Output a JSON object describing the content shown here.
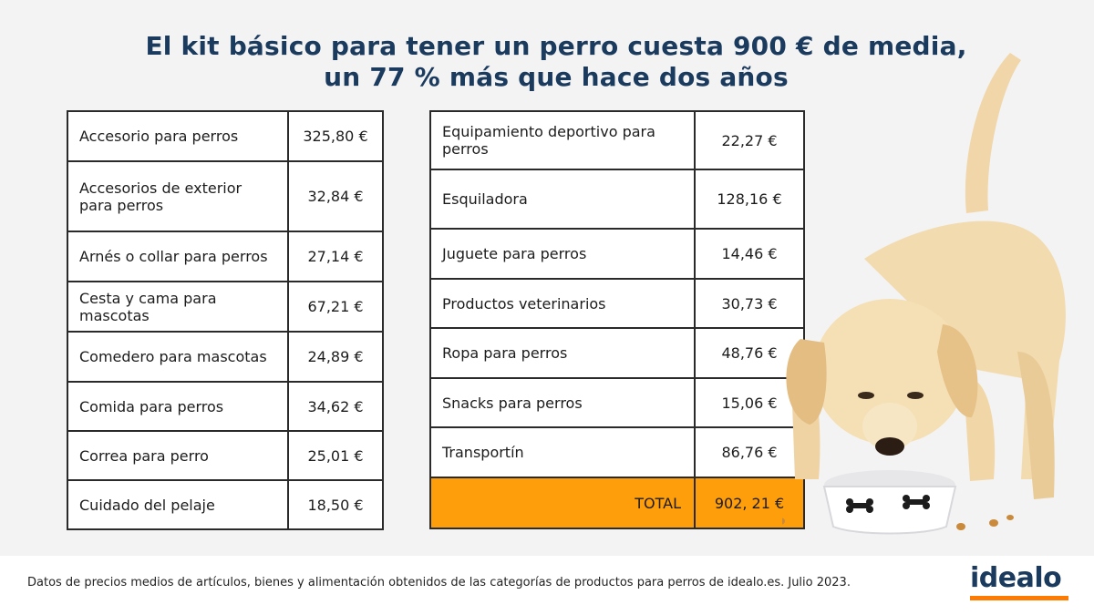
{
  "title": {
    "line1": "El kit básico para tener un perro cuesta 900 € de media,",
    "line2": "un 77 % más que hace dos años"
  },
  "table_left": [
    {
      "item": "Accesorio para perros",
      "price": "325,80 €"
    },
    {
      "item": "Accesorios de exterior para perros",
      "price": "32,84 €"
    },
    {
      "item": "Arnés o collar para perros",
      "price": "27,14 €"
    },
    {
      "item": "Cesta y cama para mascotas",
      "price": "67,21 €"
    },
    {
      "item": "Comedero para mascotas",
      "price": "24,89 €"
    },
    {
      "item": "Comida para perros",
      "price": "34,62 €"
    },
    {
      "item": "Correa para perro",
      "price": "25,01 €"
    },
    {
      "item": "Cuidado del pelaje",
      "price": "18,50 €"
    }
  ],
  "table_right": [
    {
      "item": "Equipamiento deportivo para perros",
      "price": "22,27 €"
    },
    {
      "item": "Esquiladora",
      "price": "128,16 €"
    },
    {
      "item": "Juguete para perros",
      "price": "14,46 €"
    },
    {
      "item": "Productos veterinarios",
      "price": "30,73 €"
    },
    {
      "item": "Ropa para perros",
      "price": "48,76 €"
    },
    {
      "item": "Snacks para perros",
      "price": "15,06 €"
    },
    {
      "item": "Transportín",
      "price": "86,76 €"
    }
  ],
  "total": {
    "label": "TOTAL",
    "value": "902, 21 €"
  },
  "footer": {
    "note": "Datos de precios medios de artículos, bienes y alimentación obtenidos de las categorías de productos para perros de idealo.es. Julio 2023.",
    "logo": "idealo"
  },
  "colors": {
    "title": "#1a3a5e",
    "total_highlight": "#ff9e0b",
    "logo_underline": "#ff7a00",
    "background": "#f3f3f3"
  },
  "image": {
    "icon": "puppy-eating-from-bowl"
  }
}
